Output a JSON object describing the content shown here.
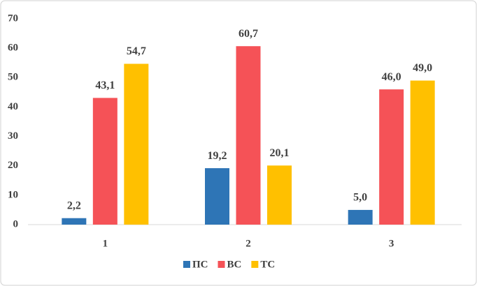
{
  "chart_data": {
    "type": "bar",
    "categories": [
      "1",
      "2",
      "3"
    ],
    "series": [
      {
        "name": "ПС",
        "color": "#2e75b6",
        "values": [
          2.2,
          19.2,
          5.0
        ],
        "value_labels": [
          "2,2",
          "19,2",
          "5,0"
        ]
      },
      {
        "name": "ВС",
        "color": "#f55257",
        "values": [
          43.1,
          60.7,
          46.0
        ],
        "value_labels": [
          "43,1",
          "60,7",
          "46,0"
        ]
      },
      {
        "name": "ТС",
        "color": "#ffc000",
        "values": [
          54.7,
          20.1,
          49.0
        ],
        "value_labels": [
          "54,7",
          "20,1",
          "49,0"
        ]
      }
    ],
    "ylim": [
      0,
      70
    ],
    "yticks": [
      0,
      10,
      20,
      30,
      40,
      50,
      60,
      70
    ],
    "grid": false,
    "legend": "bottom"
  }
}
